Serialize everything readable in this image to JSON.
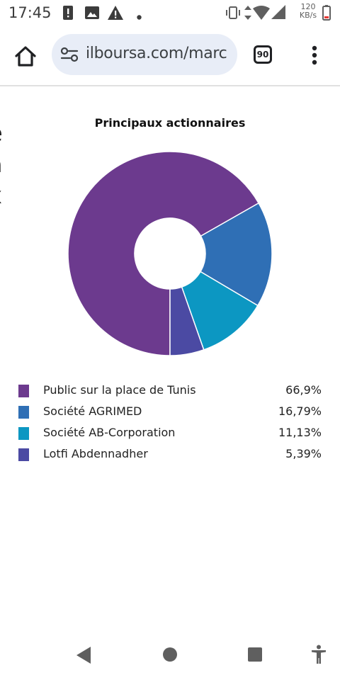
{
  "status_bar": {
    "time": "17:45",
    "speed_value": "120",
    "speed_unit": "KB/s",
    "icons": [
      "alert-notification-icon",
      "image-notification-icon",
      "warning-icon",
      "dot-icon",
      "vibrate-icon",
      "data-arrows-icon",
      "wifi-icon",
      "signal-icon",
      "battery-low-icon"
    ]
  },
  "browser": {
    "url": "ilboursa.com/marc",
    "tab_count": "90"
  },
  "page": {
    "side_text": [
      "e",
      "a",
      "x"
    ]
  },
  "chart_data": {
    "type": "pie",
    "title": "Principaux actionnaires",
    "donut": true,
    "start_angle_deg": 90,
    "direction": "clockwise",
    "slices": [
      {
        "label": "Public sur la place de Tunis",
        "value": 66.9,
        "display": "66,9%",
        "color": "#6c3a8e"
      },
      {
        "label": "Société AGRIMED",
        "value": 16.79,
        "display": "16,79%",
        "color": "#2f6fb5"
      },
      {
        "label": "Société AB-Corporation",
        "value": 11.13,
        "display": "11,13%",
        "color": "#0c97c2"
      },
      {
        "label": "Lotfi Abdennadher",
        "value": 5.39,
        "display": "5,39%",
        "color": "#4b4aa3"
      }
    ],
    "legend_placement": "bottom"
  }
}
